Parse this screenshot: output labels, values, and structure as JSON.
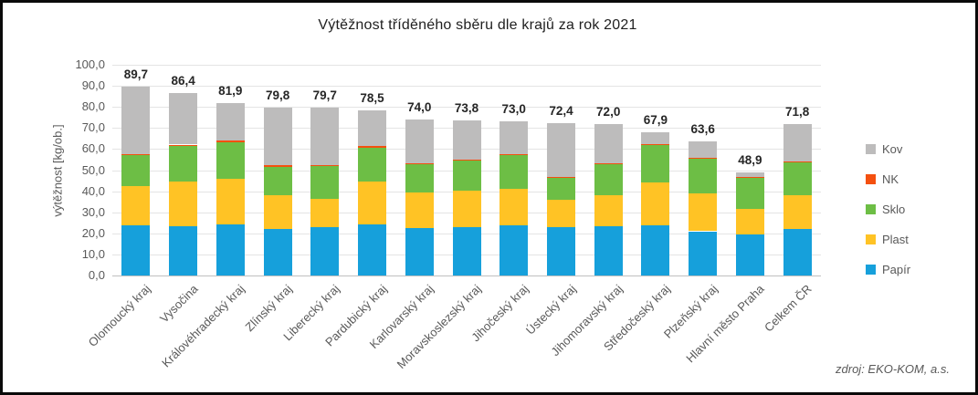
{
  "title": "Výtěžnost tříděného sběru dle krajů za rok 2021",
  "source_note": "zdroj: EKO-KOM, a.s.",
  "colors": {
    "papir": "#16A0DB",
    "plast": "#FFC325",
    "sklo": "#6DBE45",
    "nk": "#F4500F",
    "kov": "#BDBCBC",
    "grid": "#E4E4E4",
    "axis": "#C0C0C0",
    "tick_text": "#595959",
    "total_label_text": "#262626"
  },
  "chart_data": {
    "type": "bar",
    "stacked": true,
    "title": "Výtěžnost tříděného sběru dle krajů za rok 2021",
    "xlabel": "",
    "ylabel": "výtěžnost [kg/ob.]",
    "ylim": [
      0,
      100
    ],
    "y_tick_step": 10,
    "y_tick_labels": [
      "0,0",
      "10,0",
      "20,0",
      "30,0",
      "40,0",
      "50,0",
      "60,0",
      "70,0",
      "80,0",
      "90,0",
      "100,0"
    ],
    "grid": "horizontal",
    "legend_position": "right",
    "legend_order_top_to_bottom": [
      "Kov",
      "NK",
      "Sklo",
      "Plast",
      "Papír"
    ],
    "categories": [
      "Olomoucký kraj",
      "Vysočina",
      "Královéhradecký kraj",
      "Zlínský kraj",
      "Liberecký kraj",
      "Pardubický kraj",
      "Karlovarský kraj",
      "Moravskoslezský kraj",
      "Jihočeský kraj",
      "Ústecký kraj",
      "Jihomoravský kraj",
      "Středočeský kraj",
      "Plzeňský kraj",
      "Hlavní město Praha",
      "Celkem ČR"
    ],
    "totals": [
      89.7,
      86.4,
      81.9,
      79.8,
      79.7,
      78.5,
      74.0,
      73.8,
      73.0,
      72.4,
      72.0,
      67.9,
      63.6,
      48.9,
      71.8
    ],
    "total_labels": [
      "89,7",
      "86,4",
      "81,9",
      "79,8",
      "79,7",
      "78,5",
      "74,0",
      "73,8",
      "73,0",
      "72,4",
      "72,0",
      "67,9",
      "63,6",
      "48,9",
      "71,8"
    ],
    "series": [
      {
        "key": "papir",
        "name": "Papír",
        "values": [
          23.7,
          23.5,
          24.1,
          21.9,
          22.9,
          24.3,
          22.5,
          22.9,
          23.9,
          22.8,
          23.3,
          23.7,
          21.0,
          19.3,
          22.0
        ]
      },
      {
        "key": "plast",
        "name": "Plast",
        "values": [
          18.8,
          21.2,
          21.6,
          16.2,
          13.5,
          20.4,
          16.8,
          17.4,
          17.1,
          13.2,
          14.8,
          20.5,
          17.8,
          12.3,
          16.2
        ]
      },
      {
        "key": "sklo",
        "name": "Sklo",
        "values": [
          14.7,
          16.9,
          17.7,
          13.6,
          15.4,
          16.1,
          13.5,
          14.3,
          16.2,
          10.4,
          14.7,
          17.7,
          16.7,
          14.7,
          15.5
        ]
      },
      {
        "key": "nk",
        "name": "NK",
        "values": [
          0.5,
          0.5,
          0.5,
          0.5,
          0.5,
          0.5,
          0.5,
          0.5,
          0.5,
          0.3,
          0.5,
          0.5,
          0.5,
          0.5,
          0.5
        ]
      },
      {
        "key": "kov",
        "name": "Kov",
        "values": [
          32.0,
          24.3,
          18.0,
          27.6,
          27.4,
          17.2,
          20.7,
          18.7,
          15.3,
          25.7,
          18.7,
          5.5,
          7.6,
          2.1,
          17.6
        ]
      }
    ]
  }
}
